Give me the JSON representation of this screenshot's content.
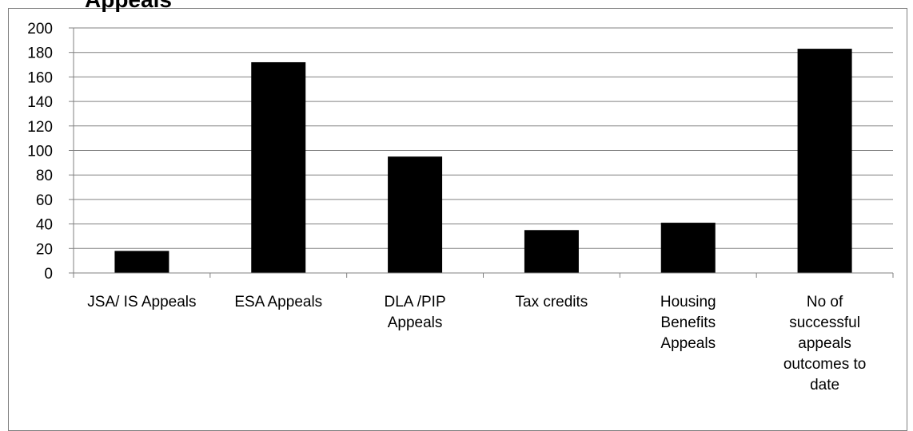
{
  "chart_data": {
    "type": "bar",
    "title": "",
    "xlabel": "",
    "ylabel": "",
    "ylim": [
      0,
      200
    ],
    "yticks": [
      0,
      20,
      40,
      60,
      80,
      100,
      120,
      140,
      160,
      180,
      200
    ],
    "grid": true,
    "legend": "none",
    "bar_color": "#000000",
    "categories": [
      [
        "JSA/ IS Appeals"
      ],
      [
        "ESA Appeals"
      ],
      [
        "DLA /PIP",
        "Appeals"
      ],
      [
        "Tax credits"
      ],
      [
        "Housing",
        "Benefits",
        "Appeals"
      ],
      [
        "No  of",
        "successful",
        "appeals",
        "outcomes to",
        "date"
      ]
    ],
    "values": [
      18,
      172,
      95,
      35,
      41,
      183
    ]
  }
}
